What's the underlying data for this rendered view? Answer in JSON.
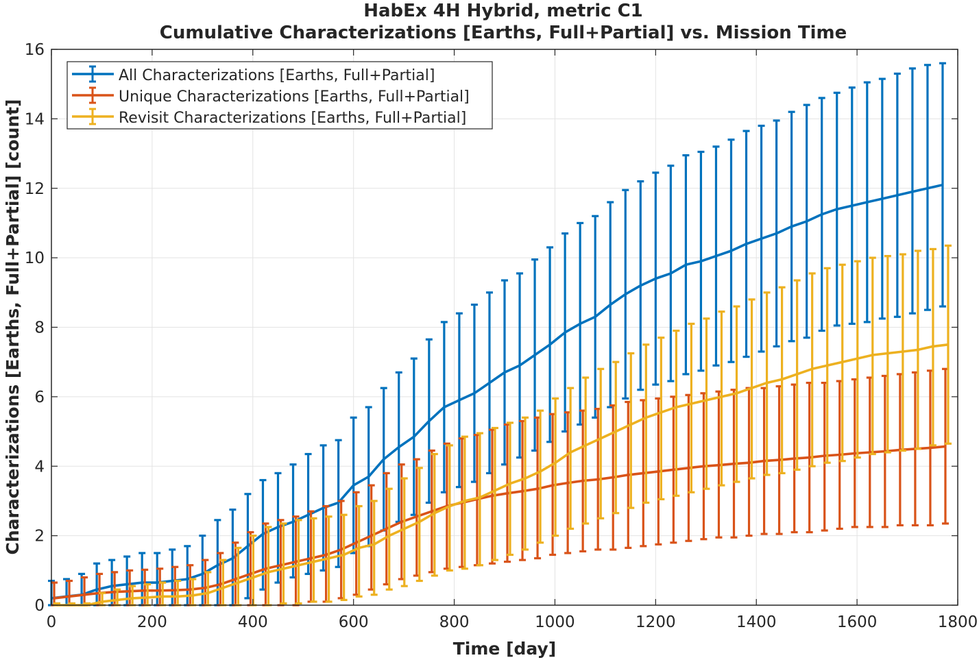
{
  "chart_data": {
    "type": "line",
    "title": "HabEx 4H Hybrid, metric C1",
    "subtitle": "Cumulative Characterizations [Earths, Full+Partial] vs. Mission Time",
    "xlabel": "Time [day]",
    "ylabel": "Characterizations [Earths, Full+Partial] [count]",
    "xlim": [
      0,
      1800
    ],
    "ylim": [
      0,
      16
    ],
    "xticks": [
      "0",
      "200",
      "400",
      "600",
      "800",
      "1000",
      "1200",
      "1400",
      "1600",
      "1800"
    ],
    "yticks": [
      "0",
      "2",
      "4",
      "6",
      "8",
      "10",
      "12",
      "14",
      "16"
    ],
    "grid": true,
    "legend_position": "top-left",
    "error_bars": true,
    "x": [
      0,
      30,
      60,
      90,
      120,
      150,
      180,
      210,
      240,
      270,
      300,
      330,
      360,
      390,
      420,
      450,
      480,
      510,
      540,
      570,
      600,
      630,
      660,
      690,
      720,
      750,
      780,
      810,
      840,
      870,
      900,
      930,
      960,
      990,
      1020,
      1050,
      1080,
      1110,
      1140,
      1170,
      1200,
      1230,
      1260,
      1290,
      1320,
      1350,
      1380,
      1410,
      1440,
      1470,
      1500,
      1530,
      1560,
      1590,
      1620,
      1650,
      1680,
      1710,
      1740,
      1770
    ],
    "series": [
      {
        "name": "All Characterizations [Earths, Full+Partial]",
        "color": "#0072BD",
        "values": [
          0.2,
          0.25,
          0.3,
          0.45,
          0.55,
          0.6,
          0.65,
          0.65,
          0.7,
          0.75,
          0.9,
          1.15,
          1.35,
          1.7,
          2.05,
          2.25,
          2.4,
          2.6,
          2.8,
          2.95,
          3.45,
          3.7,
          4.2,
          4.55,
          4.85,
          5.3,
          5.7,
          5.9,
          6.1,
          6.4,
          6.7,
          6.9,
          7.2,
          7.5,
          7.85,
          8.1,
          8.3,
          8.65,
          8.95,
          9.2,
          9.4,
          9.55,
          9.8,
          9.9,
          10.05,
          10.2,
          10.4,
          10.55,
          10.7,
          10.9,
          11.05,
          11.25,
          11.4,
          11.5,
          11.6,
          11.7,
          11.8,
          11.9,
          12.0,
          12.1
        ],
        "upper": [
          0.7,
          0.75,
          0.9,
          1.2,
          1.3,
          1.4,
          1.5,
          1.5,
          1.6,
          1.7,
          2.0,
          2.45,
          2.75,
          3.2,
          3.6,
          3.8,
          4.05,
          4.35,
          4.6,
          4.75,
          5.4,
          5.7,
          6.25,
          6.7,
          7.1,
          7.65,
          8.15,
          8.4,
          8.65,
          9.0,
          9.35,
          9.55,
          9.95,
          10.3,
          10.7,
          11.0,
          11.2,
          11.6,
          11.95,
          12.2,
          12.45,
          12.65,
          12.95,
          13.05,
          13.2,
          13.4,
          13.65,
          13.8,
          13.95,
          14.2,
          14.4,
          14.6,
          14.75,
          14.9,
          15.05,
          15.15,
          15.3,
          15.45,
          15.55,
          15.6
        ],
        "lower": [
          0,
          0,
          0,
          0,
          0,
          0,
          0,
          0,
          0,
          0,
          0,
          0,
          0,
          0.2,
          0.45,
          0.65,
          0.8,
          0.9,
          1.0,
          1.1,
          1.5,
          1.7,
          2.15,
          2.4,
          2.6,
          2.95,
          3.25,
          3.4,
          3.55,
          3.8,
          4.05,
          4.25,
          4.45,
          4.7,
          5.0,
          5.2,
          5.4,
          5.7,
          5.95,
          6.2,
          6.35,
          6.45,
          6.65,
          6.75,
          6.9,
          7.0,
          7.15,
          7.3,
          7.45,
          7.6,
          7.7,
          7.9,
          8.05,
          8.1,
          8.15,
          8.25,
          8.3,
          8.4,
          8.5,
          8.6
        ]
      },
      {
        "name": "Unique Characterizations [Earths, Full+Partial]",
        "color": "#D95319",
        "values": [
          0.2,
          0.25,
          0.3,
          0.35,
          0.38,
          0.4,
          0.42,
          0.42,
          0.43,
          0.45,
          0.5,
          0.6,
          0.75,
          0.9,
          1.05,
          1.15,
          1.25,
          1.35,
          1.45,
          1.6,
          1.8,
          2.0,
          2.2,
          2.4,
          2.55,
          2.7,
          2.85,
          2.95,
          3.05,
          3.15,
          3.22,
          3.28,
          3.35,
          3.45,
          3.52,
          3.58,
          3.62,
          3.68,
          3.75,
          3.8,
          3.85,
          3.9,
          3.95,
          4.0,
          4.03,
          4.07,
          4.1,
          4.15,
          4.18,
          4.22,
          4.25,
          4.3,
          4.33,
          4.37,
          4.4,
          4.43,
          4.47,
          4.5,
          4.53,
          4.57
        ],
        "upper": [
          0.65,
          0.7,
          0.8,
          0.9,
          0.95,
          1.0,
          1.02,
          1.05,
          1.1,
          1.15,
          1.3,
          1.5,
          1.8,
          2.1,
          2.35,
          2.45,
          2.55,
          2.7,
          2.85,
          3.0,
          3.25,
          3.45,
          3.8,
          4.05,
          4.2,
          4.45,
          4.65,
          4.8,
          4.9,
          5.05,
          5.2,
          5.3,
          5.4,
          5.5,
          5.55,
          5.6,
          5.65,
          5.75,
          5.85,
          5.9,
          5.95,
          6.0,
          6.05,
          6.1,
          6.15,
          6.2,
          6.25,
          6.25,
          6.3,
          6.35,
          6.4,
          6.4,
          6.45,
          6.5,
          6.55,
          6.6,
          6.65,
          6.7,
          6.75,
          6.8
        ],
        "lower": [
          0,
          0,
          0,
          0,
          0,
          0,
          0,
          0,
          0,
          0,
          0,
          0,
          0,
          0,
          0,
          0,
          0,
          0.1,
          0.1,
          0.2,
          0.3,
          0.45,
          0.6,
          0.75,
          0.85,
          0.95,
          1.05,
          1.1,
          1.15,
          1.2,
          1.25,
          1.3,
          1.35,
          1.45,
          1.5,
          1.55,
          1.6,
          1.6,
          1.65,
          1.7,
          1.75,
          1.8,
          1.85,
          1.9,
          1.95,
          1.95,
          2.0,
          2.05,
          2.05,
          2.1,
          2.1,
          2.15,
          2.2,
          2.25,
          2.25,
          2.25,
          2.3,
          2.3,
          2.3,
          2.35
        ]
      },
      {
        "name": "Revisit Characterizations [Earths, Full+Partial]",
        "color": "#EDB120",
        "values": [
          0.0,
          0.0,
          0.0,
          0.1,
          0.15,
          0.2,
          0.22,
          0.25,
          0.25,
          0.28,
          0.35,
          0.5,
          0.65,
          0.8,
          0.95,
          1.05,
          1.15,
          1.25,
          1.35,
          1.45,
          1.65,
          1.75,
          2.0,
          2.2,
          2.4,
          2.65,
          2.85,
          3.0,
          3.1,
          3.3,
          3.5,
          3.65,
          3.85,
          4.1,
          4.4,
          4.6,
          4.8,
          5.0,
          5.2,
          5.4,
          5.55,
          5.7,
          5.8,
          5.9,
          6.0,
          6.1,
          6.25,
          6.4,
          6.5,
          6.65,
          6.8,
          6.9,
          7.0,
          7.1,
          7.2,
          7.25,
          7.3,
          7.35,
          7.45,
          7.5
        ],
        "upper": [
          0.05,
          0.05,
          0.05,
          0.35,
          0.45,
          0.55,
          0.6,
          0.65,
          0.7,
          0.75,
          0.95,
          1.3,
          1.65,
          2.0,
          2.25,
          2.35,
          2.45,
          2.5,
          2.55,
          2.6,
          2.85,
          3.0,
          3.35,
          3.65,
          3.95,
          4.35,
          4.6,
          4.85,
          4.95,
          5.1,
          5.25,
          5.4,
          5.6,
          5.95,
          6.25,
          6.55,
          6.8,
          7.0,
          7.25,
          7.5,
          7.7,
          7.9,
          8.1,
          8.25,
          8.45,
          8.6,
          8.8,
          9.0,
          9.15,
          9.35,
          9.55,
          9.7,
          9.8,
          9.9,
          10.0,
          10.05,
          10.1,
          10.2,
          10.25,
          10.35
        ],
        "lower": [
          0,
          0,
          0,
          0,
          0,
          0,
          0,
          0,
          0,
          0,
          0,
          0,
          0,
          0,
          0,
          0.05,
          0.05,
          0.1,
          0.1,
          0.15,
          0.25,
          0.3,
          0.45,
          0.55,
          0.7,
          0.85,
          1.0,
          1.05,
          1.15,
          1.3,
          1.45,
          1.6,
          1.8,
          2.0,
          2.2,
          2.35,
          2.5,
          2.65,
          2.8,
          2.95,
          3.05,
          3.15,
          3.25,
          3.35,
          3.45,
          3.55,
          3.65,
          3.75,
          3.8,
          3.9,
          4.0,
          4.1,
          4.15,
          4.25,
          4.35,
          4.4,
          4.45,
          4.5,
          4.6,
          4.65
        ]
      }
    ]
  }
}
